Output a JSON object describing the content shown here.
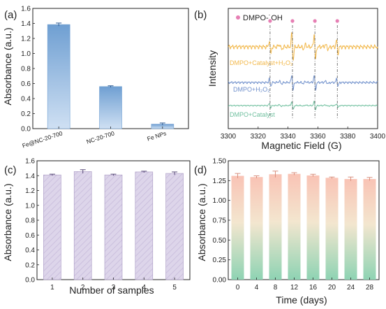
{
  "panels": {
    "a": {
      "letter": "(a)"
    },
    "b": {
      "letter": "(b)"
    },
    "c": {
      "letter": "(c)"
    },
    "d": {
      "letter": "(d)"
    }
  },
  "colors": {
    "a_bar_top": "#6f9fd2",
    "a_bar_bottom": "#cfe0f3",
    "c_bar": "#ddd5ea",
    "c_bar_border": "#a797c2",
    "d_bar_top": "#f9c3b5",
    "d_bar_bottom": "#8ed3b3",
    "b_catalyst_h2o2": "#f2b84b",
    "b_h2o2": "#7191cc",
    "b_catalyst": "#6fbf9e",
    "b_marker": "#e67fb4"
  },
  "chart_data": [
    {
      "panel": "a",
      "type": "bar",
      "categories": [
        "Fe@NC-20-700",
        "NC-20-700",
        "Fe NPs"
      ],
      "values": [
        1.385,
        0.56,
        0.06
      ],
      "errors": [
        0.02,
        0.01,
        0.015
      ],
      "ylabel": "Absorbance (a.u.)",
      "ylim": [
        0,
        1.6
      ],
      "yticks": [
        "0.0",
        "0.2",
        "0.4",
        "0.6",
        "0.8",
        "1.0",
        "1.2",
        "1.4",
        "1.6"
      ]
    },
    {
      "panel": "b",
      "type": "line",
      "xlabel": "Magnetic Field (G)",
      "ylabel": "Intensity",
      "xlim": [
        3300,
        3400
      ],
      "xticks": [
        "3300",
        "3320",
        "3340",
        "3360",
        "3380",
        "3400"
      ],
      "legend": "DMPO-˙OH",
      "peak_positions": [
        3328,
        3343,
        3358,
        3373
      ],
      "series": [
        {
          "name": "DMPO+Catalyst+H₂O₂",
          "amplitude": 1.0
        },
        {
          "name": "DMPO+H₂O₂",
          "amplitude": 0.55
        },
        {
          "name": "DMPO+Catalyst",
          "amplitude": 0.3
        }
      ]
    },
    {
      "panel": "c",
      "type": "bar",
      "categories": [
        "1",
        "2",
        "3",
        "4",
        "5"
      ],
      "values": [
        1.41,
        1.455,
        1.41,
        1.45,
        1.43
      ],
      "errors": [
        0.01,
        0.025,
        0.01,
        0.01,
        0.02
      ],
      "xlabel": "Number of samples",
      "ylabel": "Absorbance (a.u.)",
      "ylim": [
        0,
        1.6
      ],
      "yticks": [
        "0.0",
        "0.2",
        "0.4",
        "0.6",
        "0.8",
        "1.0",
        "1.2",
        "1.4",
        "1.6"
      ]
    },
    {
      "panel": "d",
      "type": "bar",
      "categories": [
        "0",
        "4",
        "8",
        "12",
        "16",
        "20",
        "24",
        "28"
      ],
      "values": [
        1.31,
        1.295,
        1.33,
        1.335,
        1.315,
        1.285,
        1.27,
        1.27
      ],
      "errors": [
        0.03,
        0.015,
        0.04,
        0.015,
        0.015,
        0.01,
        0.025,
        0.02
      ],
      "xlabel": "Time (days)",
      "ylabel": "Absorbance (a.u.)",
      "ylim": [
        0,
        1.5
      ],
      "yticks": [
        "0.00",
        "0.25",
        "0.50",
        "0.75",
        "1.00",
        "1.25",
        "1.50"
      ]
    }
  ]
}
